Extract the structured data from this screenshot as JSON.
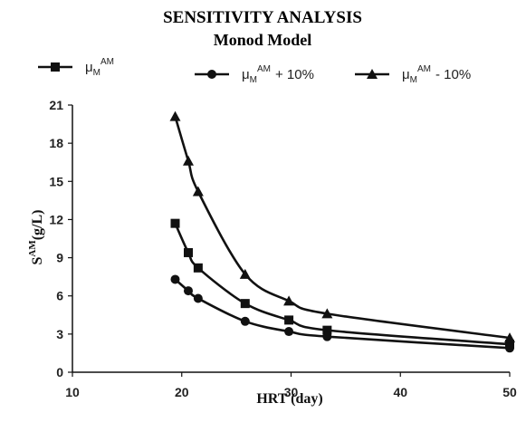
{
  "chart_data": {
    "type": "line",
    "title": "SENSITIVITY ANALYSIS",
    "subtitle": "Monod Model",
    "xlabel": "HRT (day)",
    "ylabel": "S^AM(g/L)",
    "xlim": [
      10,
      50
    ],
    "ylim": [
      0,
      21
    ],
    "xticks": [
      10,
      20,
      30,
      40,
      50
    ],
    "yticks": [
      0,
      3,
      6,
      9,
      12,
      15,
      18,
      21
    ],
    "grid": false,
    "legend_position": "top",
    "series": [
      {
        "name": "μM^AM",
        "legend_main": "μ",
        "legend_sub": "M",
        "legend_sup": "AM",
        "legend_suffix": "",
        "marker": "square",
        "x": [
          19.4,
          20.6,
          21.5,
          25.8,
          29.8,
          33.3,
          50
        ],
        "y": [
          11.7,
          9.4,
          8.2,
          5.4,
          4.1,
          3.3,
          2.2
        ]
      },
      {
        "name": "μM^AM + 10%",
        "legend_main": "μ",
        "legend_sub": "M",
        "legend_sup": "AM",
        "legend_suffix": "+ 10%",
        "marker": "circle",
        "x": [
          19.4,
          20.6,
          21.5,
          25.8,
          29.8,
          33.3,
          50
        ],
        "y": [
          7.3,
          6.4,
          5.8,
          4.0,
          3.2,
          2.8,
          1.9
        ]
      },
      {
        "name": "μM^AM - 10%",
        "legend_main": "μ",
        "legend_sub": "M",
        "legend_sup": "AM",
        "legend_suffix": "- 10%",
        "marker": "triangle",
        "x": [
          19.4,
          20.6,
          21.5,
          25.8,
          29.8,
          33.3,
          50
        ],
        "y": [
          20.1,
          16.6,
          14.2,
          7.7,
          5.6,
          4.6,
          2.7
        ]
      }
    ]
  },
  "style": {
    "line_color": "#111111",
    "axis_color": "#111111"
  }
}
